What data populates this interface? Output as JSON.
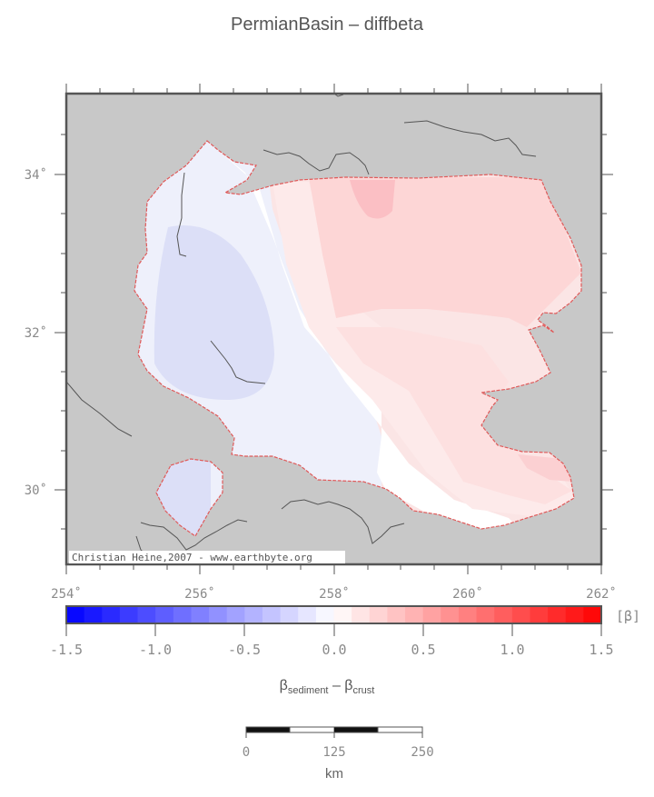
{
  "title": "PermianBasin – diffbeta",
  "map": {
    "lon_ticks": [
      "254˚",
      "256˚",
      "258˚",
      "260˚",
      "262˚"
    ],
    "lat_ticks": [
      "34˚",
      "32˚",
      "30˚"
    ],
    "credit": "Christian Heine,2007 - www.earthbyte.org",
    "colors": {
      "ocean": "#c8c8c8",
      "coastline": "#555555",
      "basin_outline": "#e05a5a"
    }
  },
  "colorbar": {
    "ticks": [
      "-1.5",
      "-1.0",
      "-0.5",
      "0.0",
      "0.5",
      "1.0",
      "1.5"
    ],
    "unit": "[β]",
    "range": [
      -1.5,
      1.5
    ],
    "steps": 30
  },
  "formula": {
    "beta": "β",
    "sub1": "sediment",
    "minus": " – ",
    "sub2": "crust"
  },
  "scalebar": {
    "ticks": [
      "0",
      "125",
      "250"
    ],
    "unit": "km"
  }
}
